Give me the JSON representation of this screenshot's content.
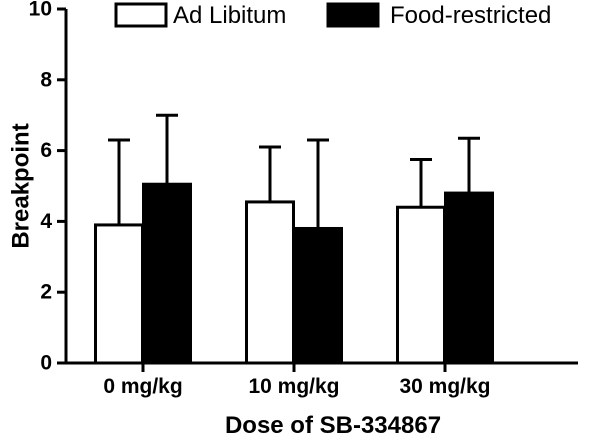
{
  "chart_data": {
    "type": "bar",
    "title": "",
    "xlabel": "Dose of SB-334867",
    "ylabel": "Breakpoint",
    "categories": [
      "0 mg/kg",
      "10 mg/kg",
      "30 mg/kg"
    ],
    "ylim": [
      0,
      10
    ],
    "yticks": [
      "0",
      "2",
      "4",
      "6",
      "8",
      "10"
    ],
    "grid": false,
    "legend_position": "top",
    "series": [
      {
        "name": "Ad Libitum",
        "fill": "#ffffff",
        "values": [
          3.9,
          4.55,
          4.4
        ],
        "error": [
          2.4,
          1.55,
          1.35
        ]
      },
      {
        "name": "Food-restricted",
        "fill": "#000000",
        "values": [
          5.05,
          3.8,
          4.8
        ],
        "error": [
          1.95,
          2.5,
          1.55
        ]
      }
    ]
  }
}
